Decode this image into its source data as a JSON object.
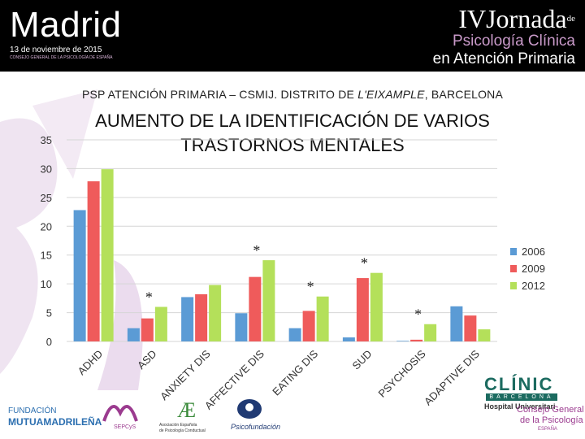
{
  "banner": {
    "city": "Madrid",
    "date": "13 de noviembre de 2015",
    "council": "CONSEJO GENERAL DE LA PSICOLOGÍA DE ESPAÑA",
    "edition": "IV",
    "event": "Jornada",
    "event_de": "de",
    "subtitle_line1": "Psicología Clínica",
    "subtitle_line2": "en Atención Primaria"
  },
  "header_prefix": "PSP ATENCIÓN PRIMARIA – CSMIJ. DISTRITO DE ",
  "header_italic": "L'EIXAMPLE",
  "header_suffix": ", BARCELONA",
  "colors": {
    "banner_bg": "#000000",
    "accent_purple": "#c99ac9",
    "series_2006": "#5b9bd5",
    "series_2009": "#ef5b5b",
    "series_2012": "#b4e05a"
  },
  "chart_data": {
    "type": "bar",
    "title_line1": "AUMENTO DE LA IDENTIFICACIÓN DE VARIOS",
    "title_line2": "TRASTORNOS MENTALES",
    "categories": [
      "ADHD",
      "ASD",
      "ANXIETY DIS",
      "AFFECTIVE DIS",
      "EATING DIS",
      "SUD",
      "PSYCHOSIS",
      "ADAPTIVE DIS"
    ],
    "series": [
      {
        "name": "2006",
        "color": "#5b9bd5",
        "values": [
          22.8,
          2.3,
          7.7,
          4.9,
          2.3,
          0.7,
          0.1,
          6.1
        ]
      },
      {
        "name": "2009",
        "color": "#ef5b5b",
        "values": [
          27.8,
          4.0,
          8.2,
          11.2,
          5.3,
          11.0,
          0.3,
          4.5
        ]
      },
      {
        "name": "2012",
        "color": "#b4e05a",
        "values": [
          29.9,
          6.0,
          9.8,
          14.1,
          7.8,
          11.9,
          3.0,
          2.1
        ]
      }
    ],
    "significance": [
      {
        "category": "ASD",
        "label": "*"
      },
      {
        "category": "AFFECTIVE DIS",
        "label": "*"
      },
      {
        "category": "EATING DIS",
        "label": "*"
      },
      {
        "category": "SUD",
        "label": "*"
      },
      {
        "category": "PSYCHOSIS",
        "label": "*"
      }
    ],
    "yticks": [
      0,
      5,
      10,
      15,
      20,
      25,
      30,
      35
    ],
    "ylim": [
      0,
      35
    ],
    "grid": true,
    "legend_position": "right"
  },
  "footer": {
    "logo1_line1": "FUNDACIÓN",
    "logo1_line2": "MUTUAMADRILEÑA",
    "logo2": "SEPCyS",
    "logo3_line1": "Asociación Española",
    "logo3_line2": "de Psicología Conductual",
    "logo4": "Psicofundación",
    "logo5_line1": "CLÍNIC",
    "logo5_line2": "BARCELONA",
    "logo5_line3": "Hospital Universitari",
    "logo6_line1": "Consejo General",
    "logo6_line2": "de la Psicología",
    "logo6_line3": "ESPAÑA"
  }
}
